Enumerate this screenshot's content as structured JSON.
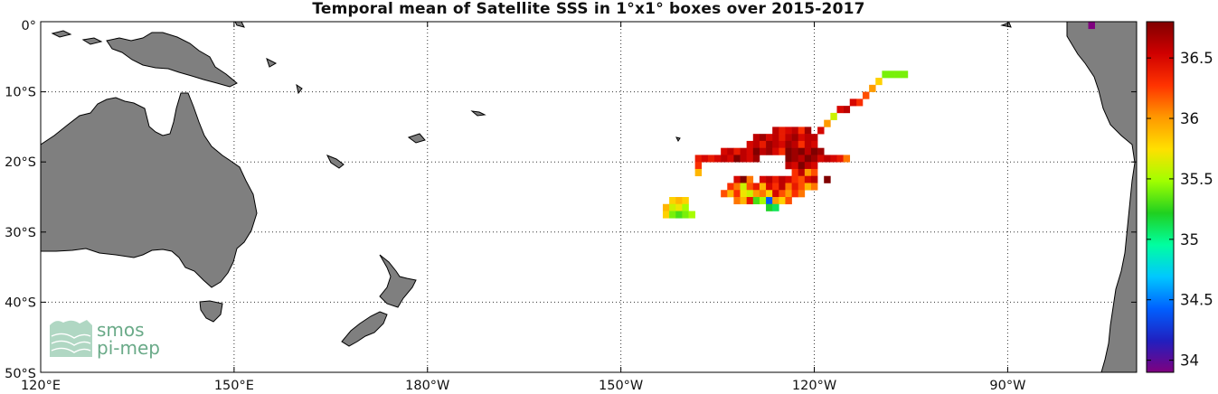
{
  "title": "Temporal mean of Satellite SSS in 1°x1° boxes over 2015-2017",
  "map": {
    "lon_range": [
      120,
      290
    ],
    "lat_range": [
      -50,
      0
    ],
    "x_ticks": [
      {
        "lon": 120,
        "label": "120°E"
      },
      {
        "lon": 150,
        "label": "150°E"
      },
      {
        "lon": 180,
        "label": "180°W"
      },
      {
        "lon": 210,
        "label": "150°W"
      },
      {
        "lon": 240,
        "label": "120°W"
      },
      {
        "lon": 270,
        "label": "90°W"
      }
    ],
    "y_ticks": [
      {
        "lat": 0,
        "label": "0°"
      },
      {
        "lat": -10,
        "label": "10°S"
      },
      {
        "lat": -20,
        "label": "20°S"
      },
      {
        "lat": -30,
        "label": "30°S"
      },
      {
        "lat": -40,
        "label": "40°S"
      },
      {
        "lat": -50,
        "label": "50°S"
      }
    ],
    "grid": "dotted",
    "land_color": "#7f7f7f",
    "ocean_color": "#ffffff"
  },
  "colorbar": {
    "range": [
      33.9,
      36.8
    ],
    "ticks": [
      "34",
      "34.5",
      "35",
      "35.5",
      "36",
      "36.5"
    ],
    "tick_values": [
      34,
      34.5,
      35,
      35.5,
      36,
      36.5
    ],
    "colormap": [
      "#7f007f",
      "#2020c0",
      "#0060ff",
      "#00c8ff",
      "#00ffa0",
      "#20d020",
      "#a0ff00",
      "#ffe000",
      "#ff9900",
      "#ff3300",
      "#d00000",
      "#800000"
    ]
  },
  "logo": {
    "line1": "smos",
    "line2": "pi-mep",
    "color": "#6aaa88"
  },
  "chart_data": {
    "type": "heatmap",
    "title": "Temporal mean of Satellite SSS in 1°x1° boxes over 2015-2017",
    "cells": [
      {
        "lon": 251,
        "lat": -7.5,
        "sss": 35.4
      },
      {
        "lon": 252,
        "lat": -7.5,
        "sss": 35.4
      },
      {
        "lon": 253,
        "lat": -7.5,
        "sss": 35.4
      },
      {
        "lon": 254,
        "lat": -7.5,
        "sss": 35.4
      },
      {
        "lon": 250,
        "lat": -8.5,
        "sss": 35.8
      },
      {
        "lon": 249,
        "lat": -9.5,
        "sss": 36.0
      },
      {
        "lon": 248,
        "lat": -10.5,
        "sss": 36.2
      },
      {
        "lon": 247,
        "lat": -11.5,
        "sss": 36.3
      },
      {
        "lon": 246,
        "lat": -11.5,
        "sss": 36.5
      },
      {
        "lon": 245,
        "lat": -12.5,
        "sss": 36.6
      },
      {
        "lon": 244,
        "lat": -12.5,
        "sss": 36.5
      },
      {
        "lon": 243,
        "lat": -13.5,
        "sss": 35.6
      },
      {
        "lon": 242,
        "lat": -14.5,
        "sss": 36.0
      },
      {
        "lon": 241,
        "lat": -15.5,
        "sss": 36.5
      },
      {
        "lon": 240,
        "lat": -16.5,
        "sss": 36.6
      },
      {
        "lon": 234,
        "lat": -15.5,
        "sss": 36.6
      },
      {
        "lon": 235,
        "lat": -15.5,
        "sss": 36.4
      },
      {
        "lon": 236,
        "lat": -15.5,
        "sss": 36.5
      },
      {
        "lon": 237,
        "lat": -15.5,
        "sss": 36.6
      },
      {
        "lon": 238,
        "lat": -15.5,
        "sss": 36.3
      },
      {
        "lon": 239,
        "lat": -15.5,
        "sss": 36.7
      },
      {
        "lon": 230,
        "lat": -17.5,
        "sss": 36.5
      },
      {
        "lon": 231,
        "lat": -16.5,
        "sss": 36.6
      },
      {
        "lon": 232,
        "lat": -16.5,
        "sss": 36.7
      },
      {
        "lon": 233,
        "lat": -16.5,
        "sss": 36.5
      },
      {
        "lon": 234,
        "lat": -16.5,
        "sss": 36.6
      },
      {
        "lon": 235,
        "lat": -16.5,
        "sss": 36.4
      },
      {
        "lon": 236,
        "lat": -16.5,
        "sss": 36.6
      },
      {
        "lon": 237,
        "lat": -16.5,
        "sss": 36.7
      },
      {
        "lon": 238,
        "lat": -16.5,
        "sss": 36.5
      },
      {
        "lon": 239,
        "lat": -16.5,
        "sss": 36.6
      },
      {
        "lon": 240,
        "lat": -17.5,
        "sss": 36.5
      },
      {
        "lon": 231,
        "lat": -17.5,
        "sss": 36.6
      },
      {
        "lon": 232,
        "lat": -17.5,
        "sss": 36.4
      },
      {
        "lon": 233,
        "lat": -17.5,
        "sss": 36.7
      },
      {
        "lon": 234,
        "lat": -17.5,
        "sss": 36.6
      },
      {
        "lon": 235,
        "lat": -17.5,
        "sss": 36.5
      },
      {
        "lon": 236,
        "lat": -17.5,
        "sss": 36.7
      },
      {
        "lon": 237,
        "lat": -17.5,
        "sss": 36.6
      },
      {
        "lon": 238,
        "lat": -17.5,
        "sss": 36.3
      },
      {
        "lon": 239,
        "lat": -17.5,
        "sss": 36.6
      },
      {
        "lon": 226,
        "lat": -18.5,
        "sss": 36.5
      },
      {
        "lon": 227,
        "lat": -18.5,
        "sss": 36.6
      },
      {
        "lon": 228,
        "lat": -18.5,
        "sss": 36.4
      },
      {
        "lon": 229,
        "lat": -18.5,
        "sss": 36.6
      },
      {
        "lon": 230,
        "lat": -18.5,
        "sss": 36.5
      },
      {
        "lon": 231,
        "lat": -18.5,
        "sss": 36.8
      },
      {
        "lon": 232,
        "lat": -18.5,
        "sss": 36.6
      },
      {
        "lon": 233,
        "lat": -18.5,
        "sss": 36.7
      },
      {
        "lon": 234,
        "lat": -18.5,
        "sss": 36.5
      },
      {
        "lon": 235,
        "lat": -18.5,
        "sss": 36.3
      },
      {
        "lon": 236,
        "lat": -18.5,
        "sss": 36.8
      },
      {
        "lon": 237,
        "lat": -18.5,
        "sss": 36.7
      },
      {
        "lon": 238,
        "lat": -18.5,
        "sss": 36.8
      },
      {
        "lon": 239,
        "lat": -18.5,
        "sss": 36.6
      },
      {
        "lon": 240,
        "lat": -18.5,
        "sss": 36.8
      },
      {
        "lon": 241,
        "lat": -18.5,
        "sss": 36.7
      },
      {
        "lon": 222,
        "lat": -19.5,
        "sss": 36.4
      },
      {
        "lon": 223,
        "lat": -19.5,
        "sss": 36.5
      },
      {
        "lon": 224,
        "lat": -19.5,
        "sss": 36.4
      },
      {
        "lon": 225,
        "lat": -19.5,
        "sss": 36.5
      },
      {
        "lon": 226,
        "lat": -19.5,
        "sss": 36.6
      },
      {
        "lon": 227,
        "lat": -19.5,
        "sss": 36.5
      },
      {
        "lon": 228,
        "lat": -19.5,
        "sss": 36.8
      },
      {
        "lon": 229,
        "lat": -19.5,
        "sss": 36.6
      },
      {
        "lon": 230,
        "lat": -19.5,
        "sss": 36.5
      },
      {
        "lon": 231,
        "lat": -19.5,
        "sss": 36.7
      },
      {
        "lon": 236,
        "lat": -19.5,
        "sss": 36.8
      },
      {
        "lon": 237,
        "lat": -19.5,
        "sss": 36.7
      },
      {
        "lon": 238,
        "lat": -19.5,
        "sss": 36.6
      },
      {
        "lon": 239,
        "lat": -19.5,
        "sss": 36.8
      },
      {
        "lon": 240,
        "lat": -19.5,
        "sss": 36.7
      },
      {
        "lon": 241,
        "lat": -19.5,
        "sss": 36.5
      },
      {
        "lon": 242,
        "lat": -19.5,
        "sss": 36.6
      },
      {
        "lon": 243,
        "lat": -19.5,
        "sss": 36.5
      },
      {
        "lon": 244,
        "lat": -19.5,
        "sss": 36.4
      },
      {
        "lon": 245,
        "lat": -19.5,
        "sss": 36.1
      },
      {
        "lon": 222,
        "lat": -20.5,
        "sss": 36.3
      },
      {
        "lon": 222,
        "lat": -21.5,
        "sss": 35.9
      },
      {
        "lon": 236,
        "lat": -20.5,
        "sss": 36.6
      },
      {
        "lon": 237,
        "lat": -20.5,
        "sss": 36.5
      },
      {
        "lon": 238,
        "lat": -20.5,
        "sss": 36.8
      },
      {
        "lon": 239,
        "lat": -20.5,
        "sss": 36.6
      },
      {
        "lon": 240,
        "lat": -20.5,
        "sss": 36.5
      },
      {
        "lon": 237,
        "lat": -21.5,
        "sss": 36.3
      },
      {
        "lon": 238,
        "lat": -21.5,
        "sss": 36.6
      },
      {
        "lon": 239,
        "lat": -21.5,
        "sss": 36.0
      },
      {
        "lon": 240,
        "lat": -21.5,
        "sss": 36.2
      },
      {
        "lon": 228,
        "lat": -22.5,
        "sss": 36.5
      },
      {
        "lon": 229,
        "lat": -22.5,
        "sss": 36.8
      },
      {
        "lon": 230,
        "lat": -22.5,
        "sss": 36.1
      },
      {
        "lon": 232,
        "lat": -22.5,
        "sss": 36.5
      },
      {
        "lon": 233,
        "lat": -22.5,
        "sss": 36.6
      },
      {
        "lon": 234,
        "lat": -22.5,
        "sss": 36.4
      },
      {
        "lon": 235,
        "lat": -22.5,
        "sss": 36.6
      },
      {
        "lon": 236,
        "lat": -22.5,
        "sss": 36.5
      },
      {
        "lon": 237,
        "lat": -22.5,
        "sss": 36.3
      },
      {
        "lon": 238,
        "lat": -22.5,
        "sss": 36.2
      },
      {
        "lon": 239,
        "lat": -22.5,
        "sss": 36.5
      },
      {
        "lon": 240,
        "lat": -22.5,
        "sss": 36.6
      },
      {
        "lon": 242,
        "lat": -22.5,
        "sss": 36.8
      },
      {
        "lon": 227,
        "lat": -23.5,
        "sss": 36.3
      },
      {
        "lon": 228,
        "lat": -23.5,
        "sss": 36.1
      },
      {
        "lon": 229,
        "lat": -23.5,
        "sss": 35.6
      },
      {
        "lon": 230,
        "lat": -23.5,
        "sss": 36.2
      },
      {
        "lon": 231,
        "lat": -23.5,
        "sss": 36.4
      },
      {
        "lon": 232,
        "lat": -23.5,
        "sss": 35.9
      },
      {
        "lon": 233,
        "lat": -23.5,
        "sss": 36.5
      },
      {
        "lon": 234,
        "lat": -23.5,
        "sss": 36.3
      },
      {
        "lon": 235,
        "lat": -23.5,
        "sss": 36.6
      },
      {
        "lon": 236,
        "lat": -23.5,
        "sss": 36.1
      },
      {
        "lon": 237,
        "lat": -23.5,
        "sss": 36.4
      },
      {
        "lon": 238,
        "lat": -23.5,
        "sss": 36.2
      },
      {
        "lon": 239,
        "lat": -23.5,
        "sss": 35.9
      },
      {
        "lon": 240,
        "lat": -23.5,
        "sss": 36.1
      },
      {
        "lon": 226,
        "lat": -24.5,
        "sss": 36.2
      },
      {
        "lon": 227,
        "lat": -24.5,
        "sss": 35.9
      },
      {
        "lon": 228,
        "lat": -24.5,
        "sss": 36.3
      },
      {
        "lon": 229,
        "lat": -24.5,
        "sss": 35.7
      },
      {
        "lon": 230,
        "lat": -24.5,
        "sss": 35.6
      },
      {
        "lon": 231,
        "lat": -24.5,
        "sss": 36.0
      },
      {
        "lon": 232,
        "lat": -24.5,
        "sss": 36.1
      },
      {
        "lon": 233,
        "lat": -24.5,
        "sss": 35.8
      },
      {
        "lon": 234,
        "lat": -24.5,
        "sss": 36.5
      },
      {
        "lon": 235,
        "lat": -24.5,
        "sss": 36.2
      },
      {
        "lon": 236,
        "lat": -24.5,
        "sss": 36.0
      },
      {
        "lon": 237,
        "lat": -24.5,
        "sss": 36.3
      },
      {
        "lon": 238,
        "lat": -24.5,
        "sss": 36.1
      },
      {
        "lon": 228,
        "lat": -25.5,
        "sss": 36.1
      },
      {
        "lon": 229,
        "lat": -25.5,
        "sss": 35.9
      },
      {
        "lon": 230,
        "lat": -25.5,
        "sss": 36.4
      },
      {
        "lon": 231,
        "lat": -25.5,
        "sss": 35.3
      },
      {
        "lon": 232,
        "lat": -25.5,
        "sss": 35.5
      },
      {
        "lon": 233,
        "lat": -25.5,
        "sss": 34.4
      },
      {
        "lon": 234,
        "lat": -25.5,
        "sss": 36.0
      },
      {
        "lon": 235,
        "lat": -25.5,
        "sss": 35.8
      },
      {
        "lon": 236,
        "lat": -25.5,
        "sss": 36.2
      },
      {
        "lon": 233,
        "lat": -26.5,
        "sss": 35.2
      },
      {
        "lon": 234,
        "lat": -26.5,
        "sss": 35.1
      },
      {
        "lon": 218,
        "lat": -25.5,
        "sss": 35.8
      },
      {
        "lon": 219,
        "lat": -25.5,
        "sss": 35.9
      },
      {
        "lon": 220,
        "lat": -25.5,
        "sss": 35.8
      },
      {
        "lon": 217,
        "lat": -26.5,
        "sss": 35.9
      },
      {
        "lon": 218,
        "lat": -26.5,
        "sss": 35.6
      },
      {
        "lon": 219,
        "lat": -26.5,
        "sss": 35.7
      },
      {
        "lon": 220,
        "lat": -26.5,
        "sss": 35.5
      },
      {
        "lon": 217,
        "lat": -27.5,
        "sss": 35.8
      },
      {
        "lon": 218,
        "lat": -27.5,
        "sss": 35.4
      },
      {
        "lon": 219,
        "lat": -27.5,
        "sss": 35.3
      },
      {
        "lon": 220,
        "lat": -27.5,
        "sss": 35.4
      },
      {
        "lon": 221,
        "lat": -27.5,
        "sss": 35.5
      },
      {
        "lon": 283,
        "lat": -0.5,
        "sss": 33.9
      }
    ]
  }
}
